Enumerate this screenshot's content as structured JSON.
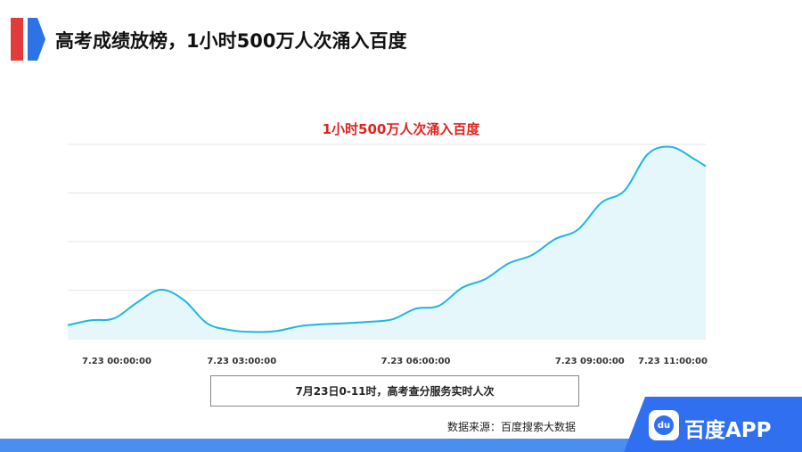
{
  "header": {
    "title": "高考成绩放榜，1小时500万人次涌入百度"
  },
  "chart_data": {
    "type": "area",
    "title": "1小时500万人次涌入百度",
    "xlabel": "7月23日0-11时，高考查分服务实时人次",
    "x_tick_labels": [
      "7.23 00:00:00",
      "7.23 03:00:00",
      "7.23 06:00:00",
      "7.23 09:00:00",
      "7.23 11:00:00"
    ],
    "x_range": [
      0,
      11
    ],
    "grid": true,
    "series": [
      {
        "values": [
          [
            0,
            2.8
          ],
          [
            0.4,
            3.8
          ],
          [
            0.8,
            4.2
          ],
          [
            1.2,
            7.5
          ],
          [
            1.6,
            10.1
          ],
          [
            2.0,
            8.0
          ],
          [
            2.4,
            3.2
          ],
          [
            2.8,
            1.8
          ],
          [
            3.2,
            1.4
          ],
          [
            3.6,
            1.6
          ],
          [
            4.0,
            2.6
          ],
          [
            4.4,
            3.0
          ],
          [
            4.8,
            3.2
          ],
          [
            5.2,
            3.5
          ],
          [
            5.6,
            4.0
          ],
          [
            6.0,
            6.2
          ],
          [
            6.4,
            6.8
          ],
          [
            6.8,
            10.5
          ],
          [
            7.2,
            12.3
          ],
          [
            7.6,
            15.5
          ],
          [
            8.0,
            17.2
          ],
          [
            8.4,
            20.5
          ],
          [
            8.8,
            22.5
          ],
          [
            9.2,
            28.0
          ],
          [
            9.6,
            30.5
          ],
          [
            10.0,
            38.0
          ],
          [
            10.4,
            39.5
          ],
          [
            10.8,
            37.0
          ],
          [
            11.0,
            35.5
          ]
        ]
      }
    ],
    "colors": {
      "line": "#1fb6e0",
      "fill": "#e6f7fc"
    }
  },
  "footer": {
    "caption": "7月23日0-11时，高考查分服务实时人次",
    "source": "数据来源：百度搜索大数据",
    "logo": {
      "icon_text": "du",
      "label": "百度APP",
      "color": "#2f6ff0"
    }
  }
}
